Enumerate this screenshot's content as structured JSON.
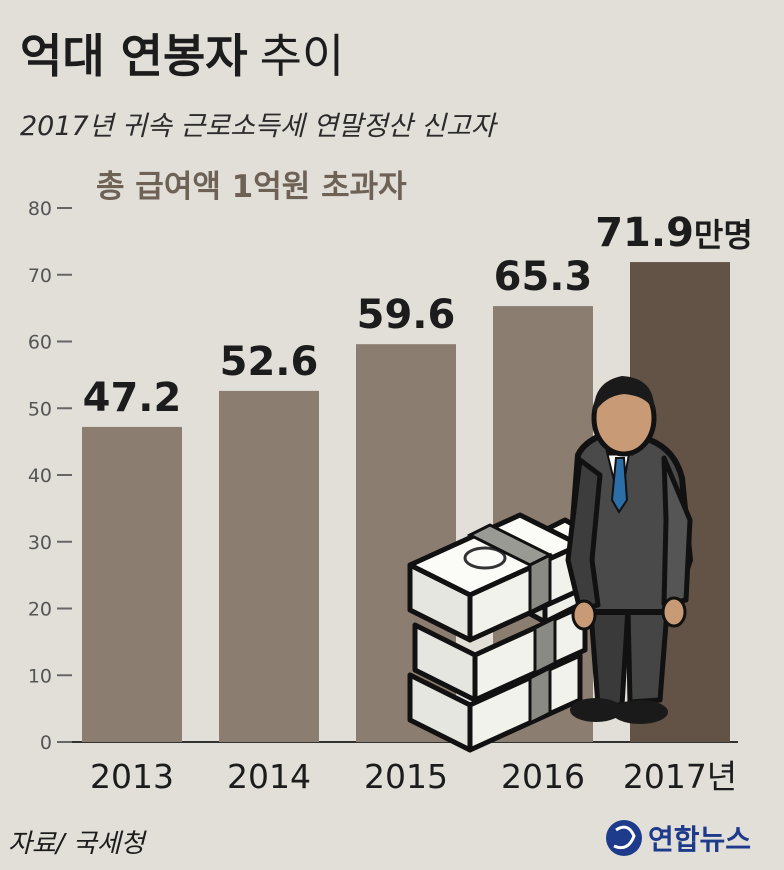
{
  "title": {
    "bold": "억대 연봉자",
    "rest": "추이"
  },
  "subtitle": "2017년 귀속 근로소득세 연말정산 신고자",
  "legend_label": "총 급여액 1억원 초과자",
  "source": "자료/ 국세청",
  "logo_text": "연합뉴스",
  "colors": {
    "bar": "#8b7d70",
    "bar_last": "#625346",
    "background": "#e2dfd9"
  },
  "chart_data": {
    "type": "bar",
    "categories": [
      "2013",
      "2014",
      "2015",
      "2016",
      "2017년"
    ],
    "values": [
      47.2,
      52.6,
      59.6,
      65.3,
      71.9
    ],
    "value_labels": [
      "47.2",
      "52.6",
      "59.6",
      "65.3",
      "71.9"
    ],
    "last_value_unit": "만명",
    "title": "억대 연봉자 추이",
    "subtitle": "2017년 귀속 근로소득세 연말정산 신고자",
    "ylim": [
      0,
      80
    ],
    "yticks": [
      0,
      10,
      20,
      30,
      40,
      50,
      60,
      70,
      80
    ],
    "grid": false,
    "legend": "top-left"
  }
}
